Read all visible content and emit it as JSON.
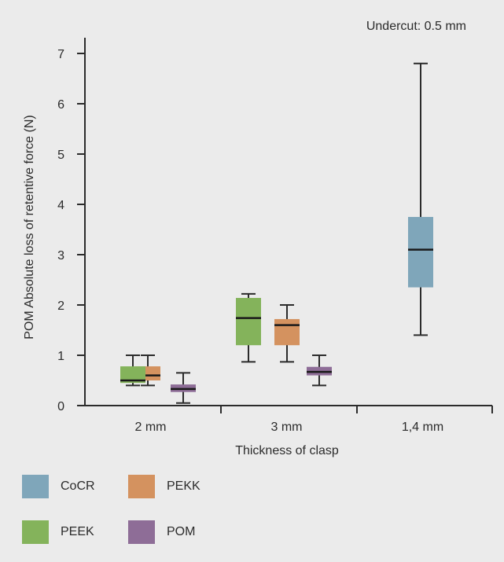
{
  "chart_data": {
    "type": "box",
    "annotation": "Undercut: 0.5 mm",
    "xlabel": "Thickness of clasp",
    "ylabel": "POM Absolute loss of retentive force (N)",
    "ylim": [
      0,
      7
    ],
    "yticks": [
      0,
      1,
      2,
      3,
      4,
      5,
      6,
      7
    ],
    "categories": [
      "2 mm",
      "3 mm",
      "1,4 mm"
    ],
    "legend_position": "bottom-left",
    "series": [
      {
        "name": "CoCR",
        "color": "#7fa6ba",
        "boxes": [
          {
            "category": "1,4 mm",
            "min": 1.4,
            "q1": 2.35,
            "median": 3.1,
            "q3": 3.75,
            "max": 6.8
          }
        ]
      },
      {
        "name": "PEKK",
        "color": "#d4925f",
        "boxes": [
          {
            "category": "2 mm",
            "min": 0.4,
            "q1": 0.5,
            "median": 0.6,
            "q3": 0.78,
            "max": 1.0
          },
          {
            "category": "3 mm",
            "min": 0.87,
            "q1": 1.2,
            "median": 1.6,
            "q3": 1.72,
            "max": 2.0
          }
        ]
      },
      {
        "name": "PEEK",
        "color": "#84b35b",
        "boxes": [
          {
            "category": "2 mm",
            "min": 0.4,
            "q1": 0.45,
            "median": 0.5,
            "q3": 0.78,
            "max": 1.0
          },
          {
            "category": "3 mm",
            "min": 0.87,
            "q1": 1.2,
            "median": 1.74,
            "q3": 2.14,
            "max": 2.22
          }
        ]
      },
      {
        "name": "POM",
        "color": "#8e6d97",
        "boxes": [
          {
            "category": "2 mm",
            "min": 0.05,
            "q1": 0.27,
            "median": 0.33,
            "q3": 0.42,
            "max": 0.65
          },
          {
            "category": "3 mm",
            "min": 0.4,
            "q1": 0.6,
            "median": 0.67,
            "q3": 0.77,
            "max": 1.0
          }
        ]
      }
    ]
  }
}
